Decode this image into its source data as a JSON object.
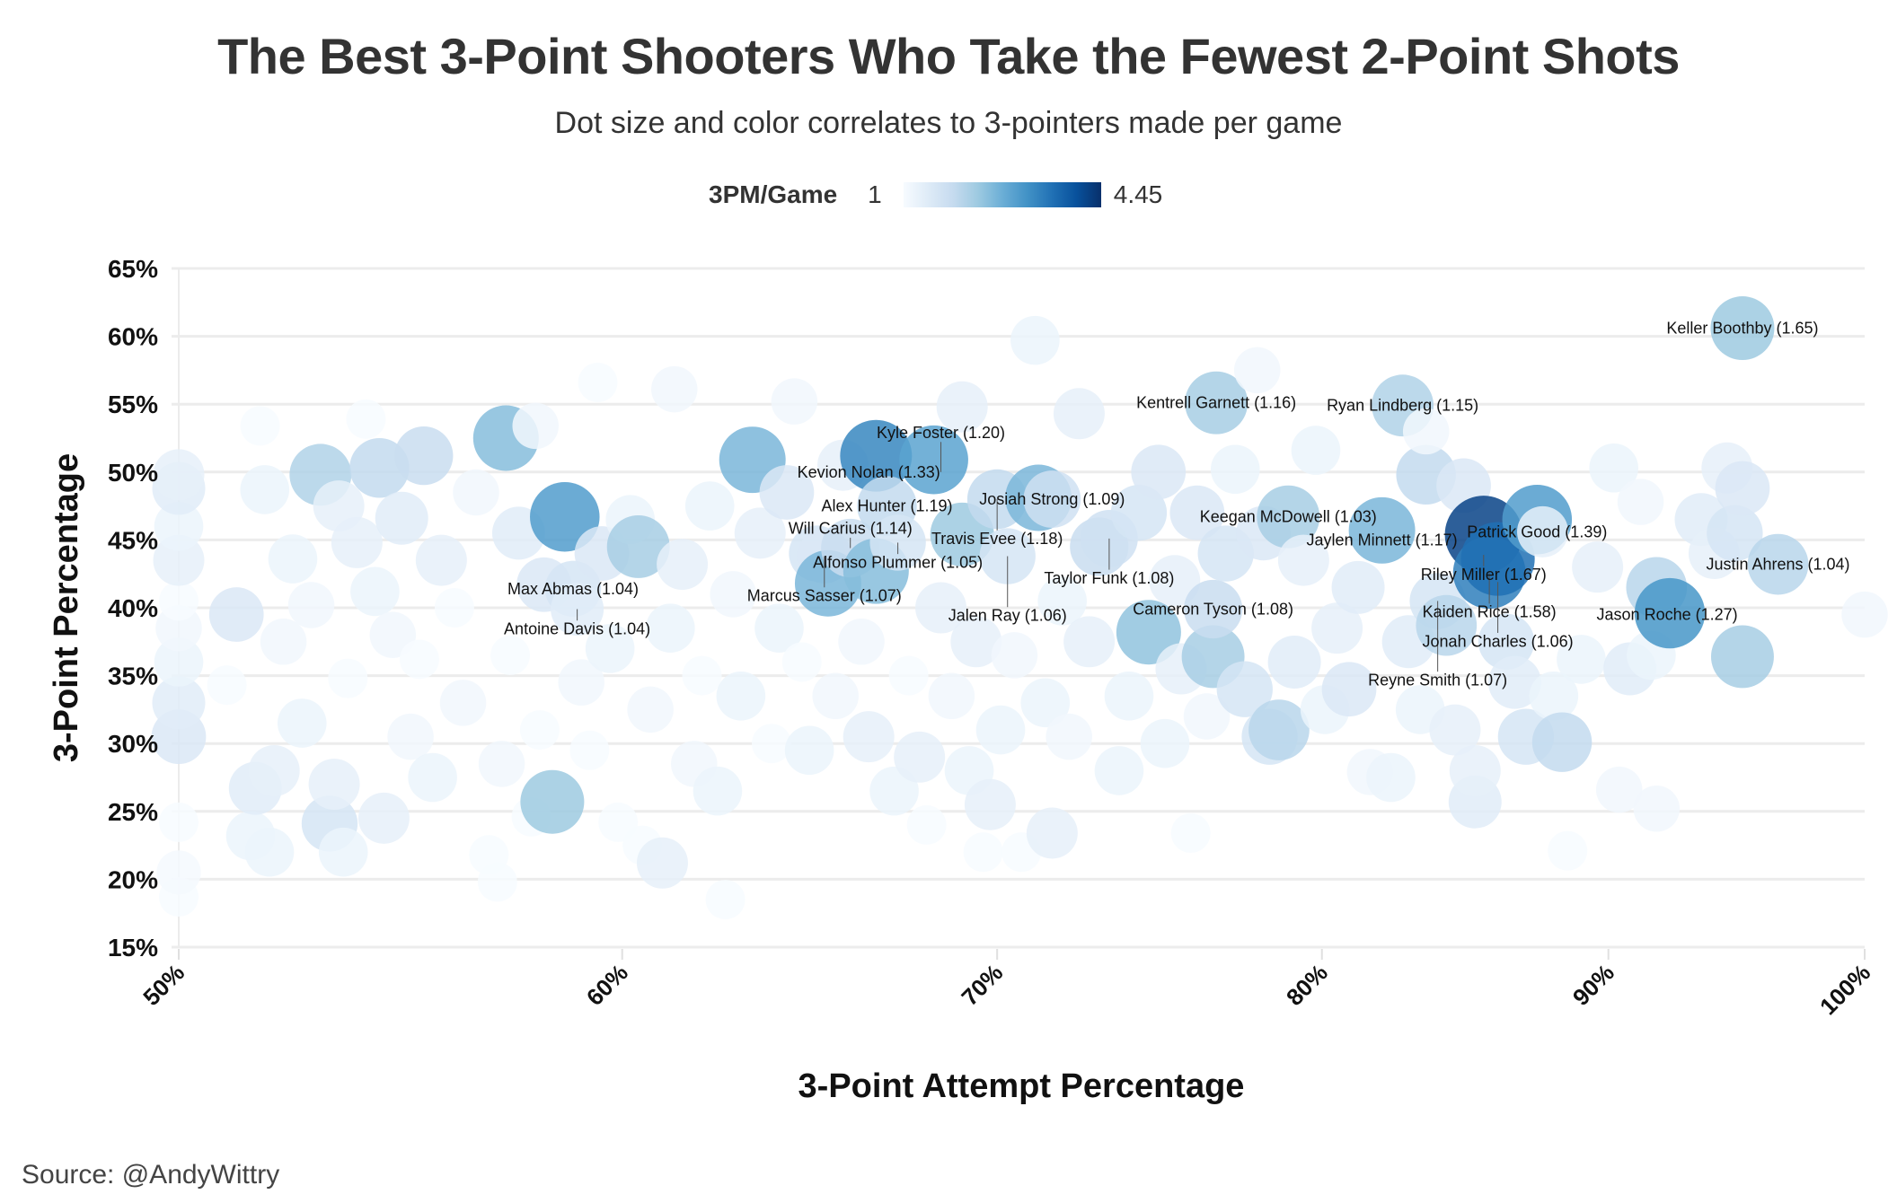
{
  "title": "The Best 3-Point Shooters Who Take the Fewest 2-Point Shots",
  "subtitle": "Dot size and color correlates to 3-pointers made per game",
  "legend": {
    "title": "3PM/Game",
    "min": "1",
    "max": "4.45",
    "min_value": 1,
    "max_value": 4.45,
    "palette": [
      "#f7fbff",
      "#deebf7",
      "#c6dbef",
      "#9ecae1",
      "#6baed6",
      "#4292c6",
      "#2171b5",
      "#08519c",
      "#08306b"
    ]
  },
  "source": "Source: @AndyWittry",
  "chart_data": {
    "type": "scatter",
    "title": "The Best 3-Point Shooters Who Take the Fewest 2-Point Shots",
    "xlabel": "3-Point Attempt Percentage",
    "ylabel": "3-Point Percentage",
    "x_scale": "log",
    "xlim": [
      50,
      100
    ],
    "ylim": [
      15,
      65
    ],
    "x_ticks": [
      "50%",
      "60%",
      "70%",
      "80%",
      "90%",
      "100%"
    ],
    "x_tick_values": [
      50,
      60,
      70,
      80,
      90,
      100
    ],
    "y_ticks": [
      "15%",
      "20%",
      "25%",
      "30%",
      "35%",
      "40%",
      "45%",
      "50%",
      "55%",
      "60%",
      "65%"
    ],
    "y_tick_values": [
      15,
      20,
      25,
      30,
      35,
      40,
      45,
      50,
      55,
      60,
      65
    ],
    "grid": "horizontal",
    "point_fields": [
      "3pa_pct",
      "3p_pct",
      "3pm_per_game"
    ],
    "points": [
      [
        50,
        18.7,
        1.0
      ],
      [
        50,
        20.5,
        1.05
      ],
      [
        50,
        24.2,
        1.0
      ],
      [
        50,
        30.5,
        1.5
      ],
      [
        50,
        33,
        1.4
      ],
      [
        50,
        36,
        1.2
      ],
      [
        50,
        38.5,
        1.1
      ],
      [
        50,
        40.5,
        1.0
      ],
      [
        50,
        43.5,
        1.3
      ],
      [
        50,
        46,
        1.2
      ],
      [
        50,
        48.8,
        1.4
      ],
      [
        50,
        49.8,
        1.3
      ],
      [
        51,
        34.3,
        1.0
      ],
      [
        51.2,
        39.5,
        1.5
      ],
      [
        51.5,
        23.2,
        1.2
      ],
      [
        51.6,
        26.7,
        1.4
      ],
      [
        51.7,
        53.4,
        1.0
      ],
      [
        51.8,
        48.7,
        1.2
      ],
      [
        51.9,
        22,
        1.2
      ],
      [
        52,
        28,
        1.3
      ],
      [
        52.2,
        37.5,
        1.1
      ],
      [
        52.4,
        43.6,
        1.2
      ],
      [
        52.6,
        31.5,
        1.2
      ],
      [
        52.8,
        40.2,
        1.1
      ],
      [
        53,
        49.8,
        2.1
      ],
      [
        53.2,
        24.1,
        1.6
      ],
      [
        53.3,
        27,
        1.3
      ],
      [
        53.4,
        47.5,
        1.3
      ],
      [
        53.5,
        22,
        1.2
      ],
      [
        53.6,
        34.8,
        1.0
      ],
      [
        53.8,
        44.8,
        1.3
      ],
      [
        54,
        53.9,
        1.0
      ],
      [
        54.2,
        41.2,
        1.2
      ],
      [
        54.3,
        50.3,
        1.9
      ],
      [
        54.4,
        24.5,
        1.3
      ],
      [
        54.6,
        38,
        1.1
      ],
      [
        54.8,
        46.6,
        1.4
      ],
      [
        55,
        30.5,
        1.1
      ],
      [
        55.3,
        51.2,
        1.8
      ],
      [
        55.2,
        36.2,
        1.0
      ],
      [
        55.5,
        27.5,
        1.2
      ],
      [
        55.7,
        43.5,
        1.3
      ],
      [
        56,
        40,
        1.0
      ],
      [
        56.2,
        33,
        1.1
      ],
      [
        56.5,
        48.5,
        1.1
      ],
      [
        56.8,
        21.8,
        1.0
      ],
      [
        57,
        19.8,
        1.0
      ],
      [
        57.1,
        28.5,
        1.1
      ],
      [
        57.2,
        52.5,
        2.5
      ],
      [
        57.3,
        36.5,
        1.0
      ],
      [
        57.5,
        45.5,
        1.4
      ],
      [
        57.8,
        24.6,
        1.0
      ],
      [
        57.9,
        53.4,
        1.1
      ],
      [
        58,
        31,
        1.0
      ],
      [
        58.1,
        41.7,
        1.5
      ],
      [
        58.3,
        25.7,
        2.3
      ],
      [
        58.6,
        46.7,
        3.0
      ],
      [
        58.8,
        41.4,
        1.6
      ],
      [
        58.9,
        39.9,
        1.4
      ],
      [
        59,
        34.5,
        1.1
      ],
      [
        59.2,
        29.5,
        1.0
      ],
      [
        59.4,
        56.6,
        1.0
      ],
      [
        59.5,
        44,
        1.5
      ],
      [
        59.7,
        37,
        1.2
      ],
      [
        59.9,
        24.2,
        1.0
      ],
      [
        60.2,
        46.5,
        1.2
      ],
      [
        60.4,
        44.5,
        2.2
      ],
      [
        60.5,
        22.5,
        1.0
      ],
      [
        60.7,
        32.5,
        1.1
      ],
      [
        61,
        21.2,
        1.3
      ],
      [
        61.2,
        38.5,
        1.2
      ],
      [
        61.3,
        56.1,
        1.1
      ],
      [
        61.5,
        43.2,
        1.3
      ],
      [
        61.8,
        28.5,
        1.1
      ],
      [
        62,
        35,
        1.0
      ],
      [
        62.2,
        47.5,
        1.2
      ],
      [
        62.4,
        26.5,
        1.2
      ],
      [
        62.6,
        18.5,
        1.0
      ],
      [
        62.8,
        41,
        1.1
      ],
      [
        63,
        33.5,
        1.2
      ],
      [
        63.3,
        50.9,
        2.6
      ],
      [
        63.5,
        45.5,
        1.3
      ],
      [
        63.8,
        30,
        1.0
      ],
      [
        64,
        38.5,
        1.2
      ],
      [
        64.2,
        48.5,
        1.5
      ],
      [
        64.4,
        55.2,
        1.1
      ],
      [
        64.6,
        36,
        1.0
      ],
      [
        64.8,
        29.5,
        1.2
      ],
      [
        65,
        44,
        1.6
      ],
      [
        65.2,
        43.8,
        1.5
      ],
      [
        65.3,
        41.8,
        2.6
      ],
      [
        65.5,
        33.5,
        1.1
      ],
      [
        65.7,
        50.5,
        1.3
      ],
      [
        65.9,
        44.4,
        1.8
      ],
      [
        66.2,
        37.5,
        1.1
      ],
      [
        66.4,
        30.5,
        1.3
      ],
      [
        66.6,
        51.2,
        3.3
      ],
      [
        66.6,
        42.7,
        2.5
      ],
      [
        66.9,
        47.5,
        1.9
      ],
      [
        67.1,
        26.5,
        1.2
      ],
      [
        67.2,
        44.8,
        1.6
      ],
      [
        67.5,
        35,
        1.0
      ],
      [
        67.8,
        29,
        1.3
      ],
      [
        68,
        24,
        1.0
      ],
      [
        68.2,
        50.9,
        2.9
      ],
      [
        68.4,
        40,
        1.3
      ],
      [
        68.7,
        33.5,
        1.1
      ],
      [
        69,
        45.4,
        2.3
      ],
      [
        69,
        54.8,
        1.3
      ],
      [
        69.2,
        28,
        1.2
      ],
      [
        69.4,
        37.5,
        1.3
      ],
      [
        69.6,
        22,
        1.0
      ],
      [
        69.8,
        25.5,
        1.3
      ],
      [
        70,
        48,
        1.9
      ],
      [
        70.1,
        31,
        1.2
      ],
      [
        70.3,
        43.8,
        1.6
      ],
      [
        70.5,
        36.5,
        1.1
      ],
      [
        70.7,
        22,
        1.0
      ],
      [
        71.1,
        59.7,
        1.2
      ],
      [
        71.2,
        48.1,
        2.6
      ],
      [
        71.4,
        33,
        1.2
      ],
      [
        71.6,
        48,
        1.7
      ],
      [
        71.6,
        23.4,
        1.3
      ],
      [
        71.9,
        40.5,
        1.2
      ],
      [
        72.1,
        30.5,
        1.1
      ],
      [
        72.4,
        54.3,
        1.3
      ],
      [
        72.7,
        37.5,
        1.3
      ],
      [
        73,
        44.5,
        1.8
      ],
      [
        73.3,
        45.1,
        1.7
      ],
      [
        73.6,
        28,
        1.2
      ],
      [
        73.9,
        33.5,
        1.2
      ],
      [
        74.2,
        47,
        1.6
      ],
      [
        74.5,
        38.2,
        2.4
      ],
      [
        74.8,
        50,
        1.5
      ],
      [
        75,
        30,
        1.2
      ],
      [
        75.3,
        42,
        1.3
      ],
      [
        75.5,
        35.5,
        1.3
      ],
      [
        75.8,
        23.4,
        1.0
      ],
      [
        76,
        47,
        1.5
      ],
      [
        76.3,
        32,
        1.1
      ],
      [
        76.5,
        36.4,
        2.2
      ],
      [
        76.5,
        39.9,
        1.8
      ],
      [
        76.6,
        55.1,
        2.2
      ],
      [
        76.9,
        44,
        1.6
      ],
      [
        77.2,
        50.2,
        1.2
      ],
      [
        77.5,
        34,
        1.6
      ],
      [
        77.9,
        57.5,
        1.1
      ],
      [
        78.1,
        45.5,
        1.5
      ],
      [
        78.3,
        30.5,
        1.6
      ],
      [
        78.6,
        31,
        2.0
      ],
      [
        78.9,
        46.7,
        2.2
      ],
      [
        79.1,
        36,
        1.4
      ],
      [
        79.4,
        43.5,
        1.3
      ],
      [
        79.8,
        51.6,
        1.2
      ],
      [
        80.1,
        32.5,
        1.2
      ],
      [
        80.5,
        38.5,
        1.3
      ],
      [
        80.9,
        34,
        1.5
      ],
      [
        81.2,
        41.5,
        1.4
      ],
      [
        81.6,
        27.9,
        1.1
      ],
      [
        82,
        45.7,
        2.6
      ],
      [
        82.3,
        27.5,
        1.2
      ],
      [
        82.7,
        54.9,
        2.1
      ],
      [
        82.9,
        37.5,
        1.4
      ],
      [
        83.3,
        32.5,
        1.2
      ],
      [
        83.5,
        49.8,
        1.9
      ],
      [
        83.5,
        53,
        1.1
      ],
      [
        83.9,
        40.5,
        1.6
      ],
      [
        84.2,
        38.7,
        2.0
      ],
      [
        84.5,
        31,
        1.3
      ],
      [
        84.8,
        49,
        1.5
      ],
      [
        85.2,
        25.7,
        1.4
      ],
      [
        85.2,
        28,
        1.3
      ],
      [
        85.5,
        45.4,
        4.2
      ],
      [
        85.7,
        42.6,
        3.4
      ],
      [
        86,
        43.6,
        3.6
      ],
      [
        86.3,
        37.5,
        1.6
      ],
      [
        86.6,
        34.5,
        1.4
      ],
      [
        87,
        30.5,
        1.6
      ],
      [
        87.4,
        46.5,
        3.0
      ],
      [
        87.6,
        45.6,
        1.3
      ],
      [
        88,
        33.5,
        1.2
      ],
      [
        88.3,
        30.1,
        1.9
      ],
      [
        88.5,
        22.1,
        1.0
      ],
      [
        89,
        36.2,
        1.2
      ],
      [
        89.6,
        43,
        1.3
      ],
      [
        90.2,
        50.3,
        1.2
      ],
      [
        90.4,
        26.6,
        1.1
      ],
      [
        90.8,
        35.5,
        1.4
      ],
      [
        91.2,
        47.8,
        1.1
      ],
      [
        91.6,
        36.5,
        1.2
      ],
      [
        91.8,
        25.2,
        1.1
      ],
      [
        91.8,
        41.5,
        2.0
      ],
      [
        92.3,
        39.6,
        3.1
      ],
      [
        93.5,
        46.5,
        1.4
      ],
      [
        94,
        44,
        1.3
      ],
      [
        94.5,
        50.3,
        1.3
      ],
      [
        94.8,
        45.5,
        1.6
      ],
      [
        95.1,
        48.8,
        1.5
      ],
      [
        95.1,
        60.6,
        2.3
      ],
      [
        95.1,
        36.4,
        2.2
      ],
      [
        96.5,
        43.2,
        2.0
      ],
      [
        100,
        39.5,
        1.1
      ]
    ],
    "annotations": [
      {
        "text": "Keller Boothby (1.65)",
        "x": 95.1,
        "y": 60.6
      },
      {
        "text": "Kentrell Garnett (1.16)",
        "x": 76.6,
        "y": 55.1
      },
      {
        "text": "Ryan Lindberg (1.15)",
        "x": 82.7,
        "y": 54.9
      },
      {
        "text": "Kevion Nolan (1.33)",
        "x": 66.4,
        "y": 50.0
      },
      {
        "text": "Kyle Foster (1.20)",
        "x": 68.4,
        "y": 50.0
      },
      {
        "text": "Alex Hunter (1.19)",
        "x": 66.9,
        "y": 47.5
      },
      {
        "text": "Travis Evee (1.18)",
        "x": 70.0,
        "y": 48.0
      },
      {
        "text": "Josiah Strong (1.09)",
        "x": 71.6,
        "y": 48.0
      },
      {
        "text": "Taylor Funk (1.08)",
        "x": 73.3,
        "y": 45.1
      },
      {
        "text": "Keegan McDowell (1.03)",
        "x": 78.9,
        "y": 46.7
      },
      {
        "text": "Jaylen Minnett (1.17)",
        "x": 82.0,
        "y": 45.0
      },
      {
        "text": "Patrick Good (1.39)",
        "x": 87.4,
        "y": 45.6
      },
      {
        "text": "Riley Miller (1.67)",
        "x": 85.5,
        "y": 43.9
      },
      {
        "text": "Kaiden Rice (1.58)",
        "x": 85.7,
        "y": 42.6
      },
      {
        "text": "Jonah Charles (1.06)",
        "x": 86.0,
        "y": 41.9
      },
      {
        "text": "Reyne Smith (1.07)",
        "x": 83.9,
        "y": 40.5
      },
      {
        "text": "Justin Ahrens (1.04)",
        "x": 96.5,
        "y": 43.2
      },
      {
        "text": "Jason Roche (1.27)",
        "x": 92.2,
        "y": 39.5
      },
      {
        "text": "Cameron Tyson (1.08)",
        "x": 76.5,
        "y": 39.9
      },
      {
        "text": "Jalen Ray (1.06)",
        "x": 70.3,
        "y": 43.8
      },
      {
        "text": "Alfonso Plummer (1.05)",
        "x": 67.2,
        "y": 44.8
      },
      {
        "text": "Will Carius (1.14)",
        "x": 65.9,
        "y": 44.4
      },
      {
        "text": "Marcus Sasser (1.07)",
        "x": 65.2,
        "y": 43.8
      },
      {
        "text": "Max Abmas (1.04)",
        "x": 58.8,
        "y": 41.4
      },
      {
        "text": "Antoine Davis (1.04)",
        "x": 58.9,
        "y": 39.9
      }
    ]
  }
}
